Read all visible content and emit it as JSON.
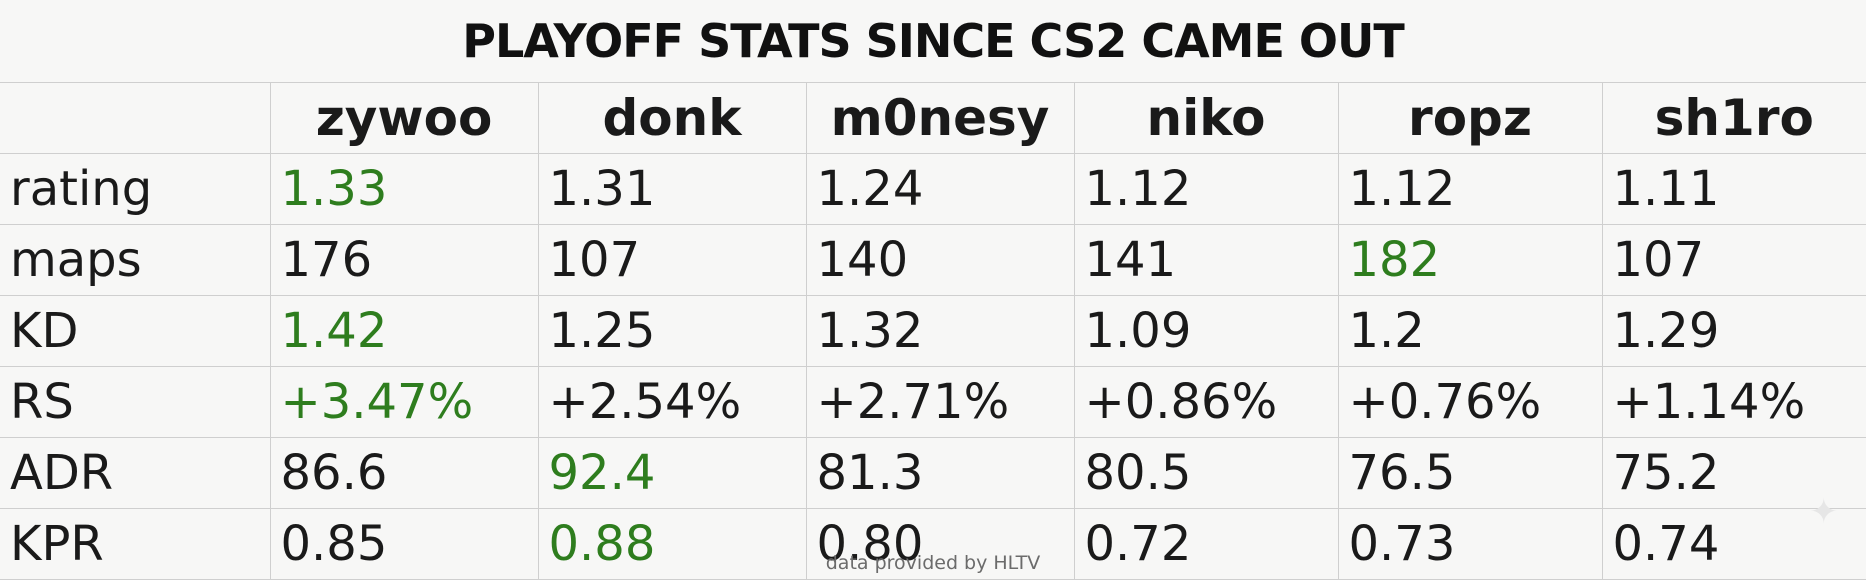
{
  "title": "PLAYOFF STATS SINCE CS2 CAME OUT",
  "players": [
    "zywoo",
    "donk",
    "m0nesy",
    "niko",
    "ropz",
    "sh1ro"
  ],
  "rows": [
    {
      "label": "rating",
      "values": [
        "1.33",
        "1.31",
        "1.24",
        "1.12",
        "1.12",
        "1.11"
      ]
    },
    {
      "label": "maps",
      "values": [
        "176",
        "107",
        "140",
        "141",
        "182",
        "107"
      ]
    },
    {
      "label": "KD",
      "values": [
        "1.42",
        "1.25",
        "1.32",
        "1.09",
        "1.2",
        "1.29"
      ]
    },
    {
      "label": "RS",
      "values": [
        "+3.47%",
        "+2.54%",
        "+2.71%",
        "+0.86%",
        "+0.76%",
        "+1.14%"
      ]
    },
    {
      "label": "ADR",
      "values": [
        "86.6",
        "92.4",
        "81.3",
        "80.5",
        "76.5",
        "75.2"
      ]
    },
    {
      "label": "KPR",
      "values": [
        "0.85",
        "0.88",
        "0.80",
        "0.72",
        "0.73",
        "0.74"
      ]
    }
  ],
  "footer": "data provided by HLTV",
  "colors": {
    "highlight": "#2e7d1e",
    "text": "#1a1a1a",
    "grid": "#cfcfcf",
    "background": "#f7f7f6"
  }
}
